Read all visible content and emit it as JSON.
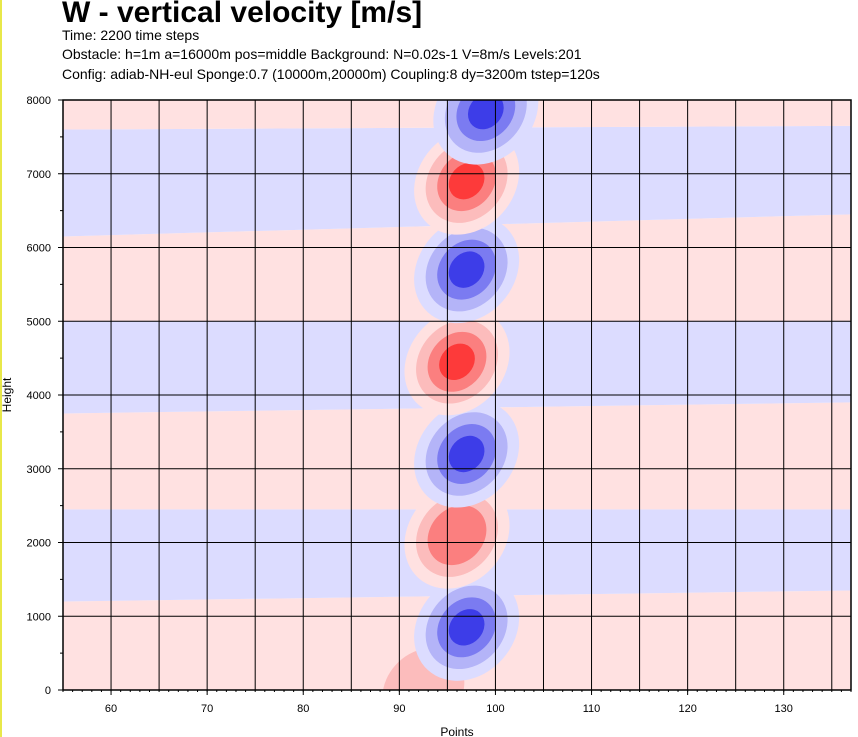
{
  "header": {
    "title": "W - vertical velocity [m/s]",
    "line1": "Time: 2200 time steps",
    "line2": "Obstacle: h=1m a=16000m pos=middle Background: N=0.02s-1 V=8m/s Levels:201",
    "line3": "Config: adiab-NH-eul Sponge:0.7 (10000m,20000m) Coupling:8 dy=3200m tstep=120s"
  },
  "chart_data": {
    "type": "heatmap",
    "title": "W - vertical velocity [m/s]",
    "xlabel": "Points",
    "ylabel": "Height",
    "xlim": [
      55,
      137
    ],
    "ylim": [
      0,
      8000
    ],
    "x_ticks": [
      60,
      70,
      80,
      90,
      100,
      110,
      120,
      130
    ],
    "y_ticks": [
      0,
      1000,
      2000,
      3000,
      4000,
      5000,
      6000,
      7000,
      8000
    ],
    "x_tick_labels": [
      "60",
      "70",
      "80",
      "90",
      "100",
      "110",
      "120",
      "130"
    ],
    "y_tick_labels": [
      "0",
      "1000",
      "2000",
      "3000",
      "4000",
      "5000",
      "6000",
      "7000",
      "8000"
    ],
    "grid": true,
    "colors": {
      "positive": "#ff0000",
      "negative": "#0000ff",
      "zero": "#ffffff"
    },
    "background_bands": [
      {
        "sign": "positive",
        "y_left": [
          0,
          1200
        ],
        "y_right": [
          0,
          1350
        ]
      },
      {
        "sign": "negative",
        "y_left": [
          1200,
          2450
        ],
        "y_right": [
          1350,
          2450
        ]
      },
      {
        "sign": "positive",
        "y_left": [
          2450,
          3750
        ],
        "y_right": [
          2450,
          3900
        ]
      },
      {
        "sign": "negative",
        "y_left": [
          3750,
          5000
        ],
        "y_right": [
          3900,
          5000
        ]
      },
      {
        "sign": "positive",
        "y_left": [
          5000,
          6150
        ],
        "y_right": [
          5000,
          6450
        ]
      },
      {
        "sign": "negative",
        "y_left": [
          6150,
          7600
        ],
        "y_right": [
          6450,
          7650
        ]
      },
      {
        "sign": "positive",
        "y_left": [
          7600,
          8000
        ],
        "y_right": [
          7650,
          8000
        ]
      }
    ],
    "cells": [
      {
        "sign": "positive",
        "x": 92.5,
        "y": 0,
        "intensity": 1
      },
      {
        "sign": "negative",
        "x": 97,
        "y": 850,
        "intensity": 3
      },
      {
        "sign": "positive",
        "x": 96,
        "y": 2100,
        "intensity": 2
      },
      {
        "sign": "negative",
        "x": 97,
        "y": 3200,
        "intensity": 3
      },
      {
        "sign": "positive",
        "x": 96,
        "y": 4450,
        "intensity": 3
      },
      {
        "sign": "negative",
        "x": 97,
        "y": 5700,
        "intensity": 3
      },
      {
        "sign": "positive",
        "x": 97,
        "y": 6900,
        "intensity": 3
      },
      {
        "sign": "negative",
        "x": 99,
        "y": 7850,
        "intensity": 3
      }
    ]
  }
}
